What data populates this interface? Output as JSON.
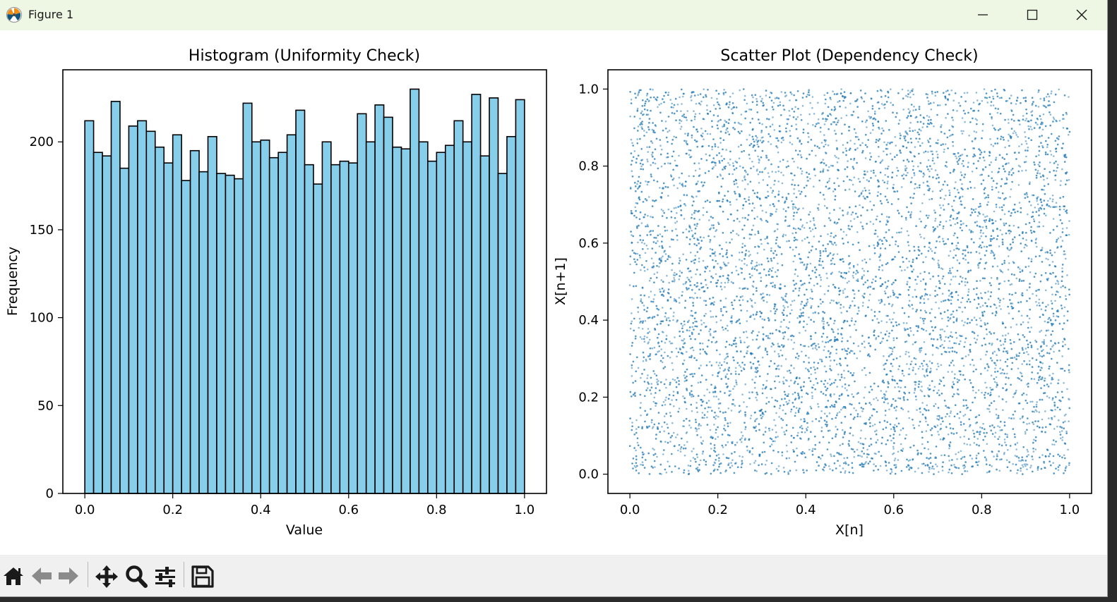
{
  "window": {
    "title": "Figure 1"
  },
  "toolbar": {
    "buttons": [
      {
        "name": "home",
        "icon": "home-icon"
      },
      {
        "name": "back",
        "icon": "arrow-left-icon"
      },
      {
        "name": "forward",
        "icon": "arrow-right-icon"
      },
      {
        "name": "pan",
        "icon": "move-icon"
      },
      {
        "name": "zoom",
        "icon": "zoom-icon"
      },
      {
        "name": "configure",
        "icon": "sliders-icon"
      },
      {
        "name": "save",
        "icon": "save-icon"
      }
    ]
  },
  "chart_data": [
    {
      "type": "bar",
      "title": "Histogram (Uniformity Check)",
      "xlabel": "Value",
      "ylabel": "Frequency",
      "xlim": [
        -0.05,
        1.05
      ],
      "ylim": [
        0,
        241
      ],
      "xticks": [
        "0.0",
        "0.2",
        "0.4",
        "0.6",
        "0.8",
        "1.0"
      ],
      "yticks": [
        "0",
        "50",
        "100",
        "150",
        "200"
      ],
      "bin_range": [
        0,
        1
      ],
      "bins": 50,
      "values": [
        212,
        194,
        192,
        223,
        185,
        209,
        212,
        206,
        197,
        188,
        204,
        178,
        195,
        183,
        203,
        182,
        181,
        179,
        222,
        200,
        201,
        191,
        194,
        204,
        218,
        187,
        176,
        200,
        187,
        189,
        188,
        216,
        200,
        221,
        214,
        197,
        196,
        230,
        200,
        189,
        194,
        198,
        212,
        200,
        227,
        192,
        225,
        182,
        203,
        224
      ],
      "bar_color": "#87ceeb",
      "edge_color": "#000000"
    },
    {
      "type": "scatter",
      "title": "Scatter Plot (Dependency Check)",
      "xlabel": "X[n]",
      "ylabel": "X[n+1]",
      "xlim": [
        -0.05,
        1.05
      ],
      "ylim": [
        -0.05,
        1.05
      ],
      "xticks": [
        "0.0",
        "0.2",
        "0.4",
        "0.6",
        "0.8",
        "1.0"
      ],
      "yticks": [
        "0.0",
        "0.2",
        "0.4",
        "0.6",
        "0.8",
        "1.0"
      ],
      "point_color": "#1f77b4",
      "point_alpha": 0.5,
      "n_points": 10000,
      "distribution": "uniform",
      "x_range": [
        0,
        1
      ],
      "y_range": [
        0,
        1
      ]
    }
  ]
}
